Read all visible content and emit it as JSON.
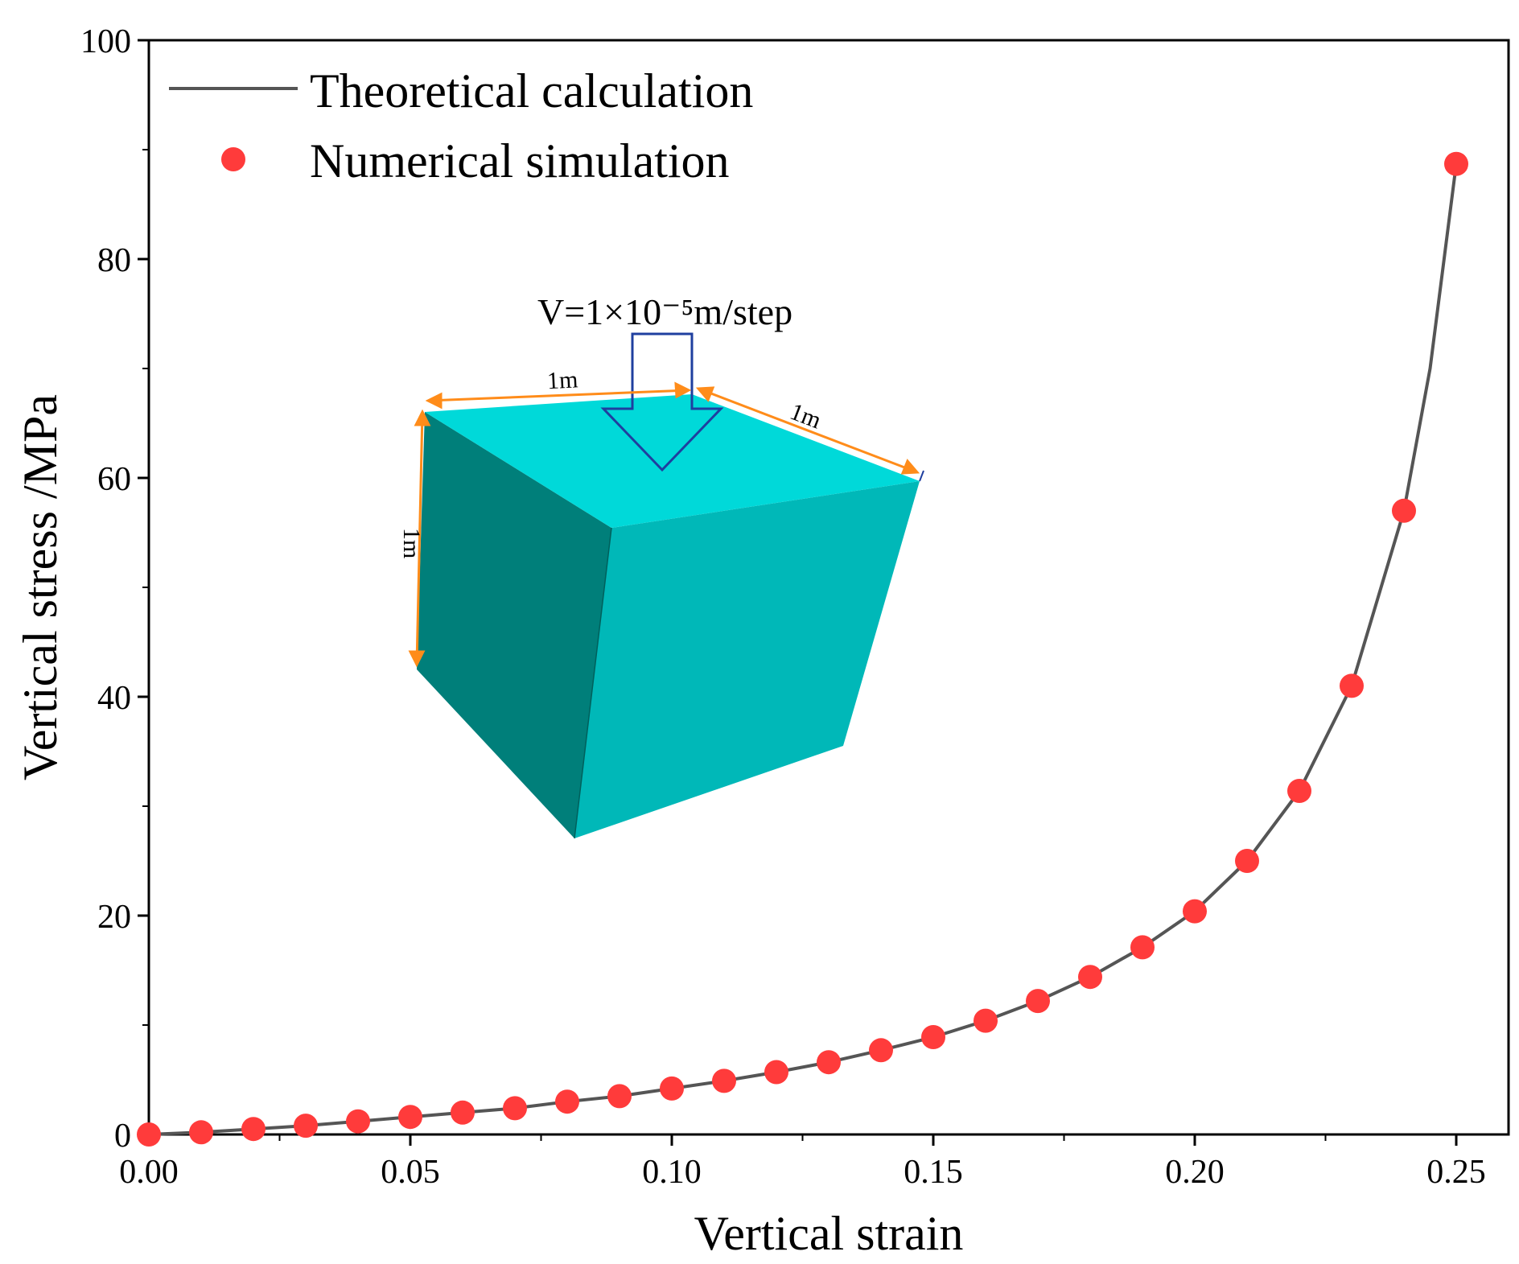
{
  "chart_data": {
    "type": "scatter",
    "title": "",
    "xlabel": "Vertical strain",
    "ylabel": "Vertical stress /MPa",
    "xlim": [
      0,
      0.26
    ],
    "ylim": [
      0,
      100
    ],
    "x_ticks": [
      0.0,
      0.05,
      0.1,
      0.15,
      0.2,
      0.25
    ],
    "x_tick_labels": [
      "0.00",
      "0.05",
      "0.10",
      "0.15",
      "0.20",
      "0.25"
    ],
    "y_ticks": [
      0,
      20,
      40,
      60,
      80,
      100
    ],
    "y_tick_labels": [
      "0",
      "20",
      "40",
      "60",
      "80",
      "100"
    ],
    "grid": false,
    "legend_position": "top-left",
    "series": [
      {
        "name": "Theoretical calculation",
        "kind": "line",
        "color": "#555555",
        "x": [
          0.0,
          0.01,
          0.02,
          0.03,
          0.04,
          0.05,
          0.06,
          0.07,
          0.08,
          0.09,
          0.1,
          0.11,
          0.12,
          0.13,
          0.14,
          0.15,
          0.16,
          0.17,
          0.18,
          0.19,
          0.2,
          0.21,
          0.22,
          0.23,
          0.24,
          0.245,
          0.25
        ],
        "y": [
          0.0,
          0.2,
          0.5,
          0.8,
          1.2,
          1.6,
          2.0,
          2.4,
          3.0,
          3.5,
          4.2,
          4.9,
          5.7,
          6.6,
          7.7,
          8.9,
          10.4,
          12.2,
          14.4,
          17.1,
          20.4,
          25.0,
          31.4,
          41.0,
          57.0,
          70.0,
          88.7
        ]
      },
      {
        "name": "Numerical simulation",
        "kind": "scatter",
        "color": "#ff3b3b",
        "x": [
          0.0,
          0.01,
          0.02,
          0.03,
          0.04,
          0.05,
          0.06,
          0.07,
          0.08,
          0.09,
          0.1,
          0.11,
          0.12,
          0.13,
          0.14,
          0.15,
          0.16,
          0.17,
          0.18,
          0.19,
          0.2,
          0.21,
          0.22,
          0.23,
          0.24,
          0.25
        ],
        "y": [
          0.0,
          0.2,
          0.5,
          0.8,
          1.2,
          1.6,
          2.0,
          2.4,
          3.0,
          3.5,
          4.2,
          4.9,
          5.7,
          6.6,
          7.7,
          8.9,
          10.4,
          12.2,
          14.4,
          17.1,
          20.4,
          25.0,
          31.4,
          41.0,
          57.0,
          88.7
        ]
      }
    ],
    "inset": {
      "description_labels": {
        "velocity": "V=1×10⁻⁵m/step",
        "edge_top_front": "1m",
        "edge_top_right": "1m",
        "edge_vertical": "1m"
      },
      "colors": {
        "top_face": "#00d9d9",
        "left_face": "#007f7a",
        "right_face": "#00b8b8",
        "dimension_lines": "#ff8c1a",
        "arrow": "#1f3f9f"
      }
    }
  }
}
